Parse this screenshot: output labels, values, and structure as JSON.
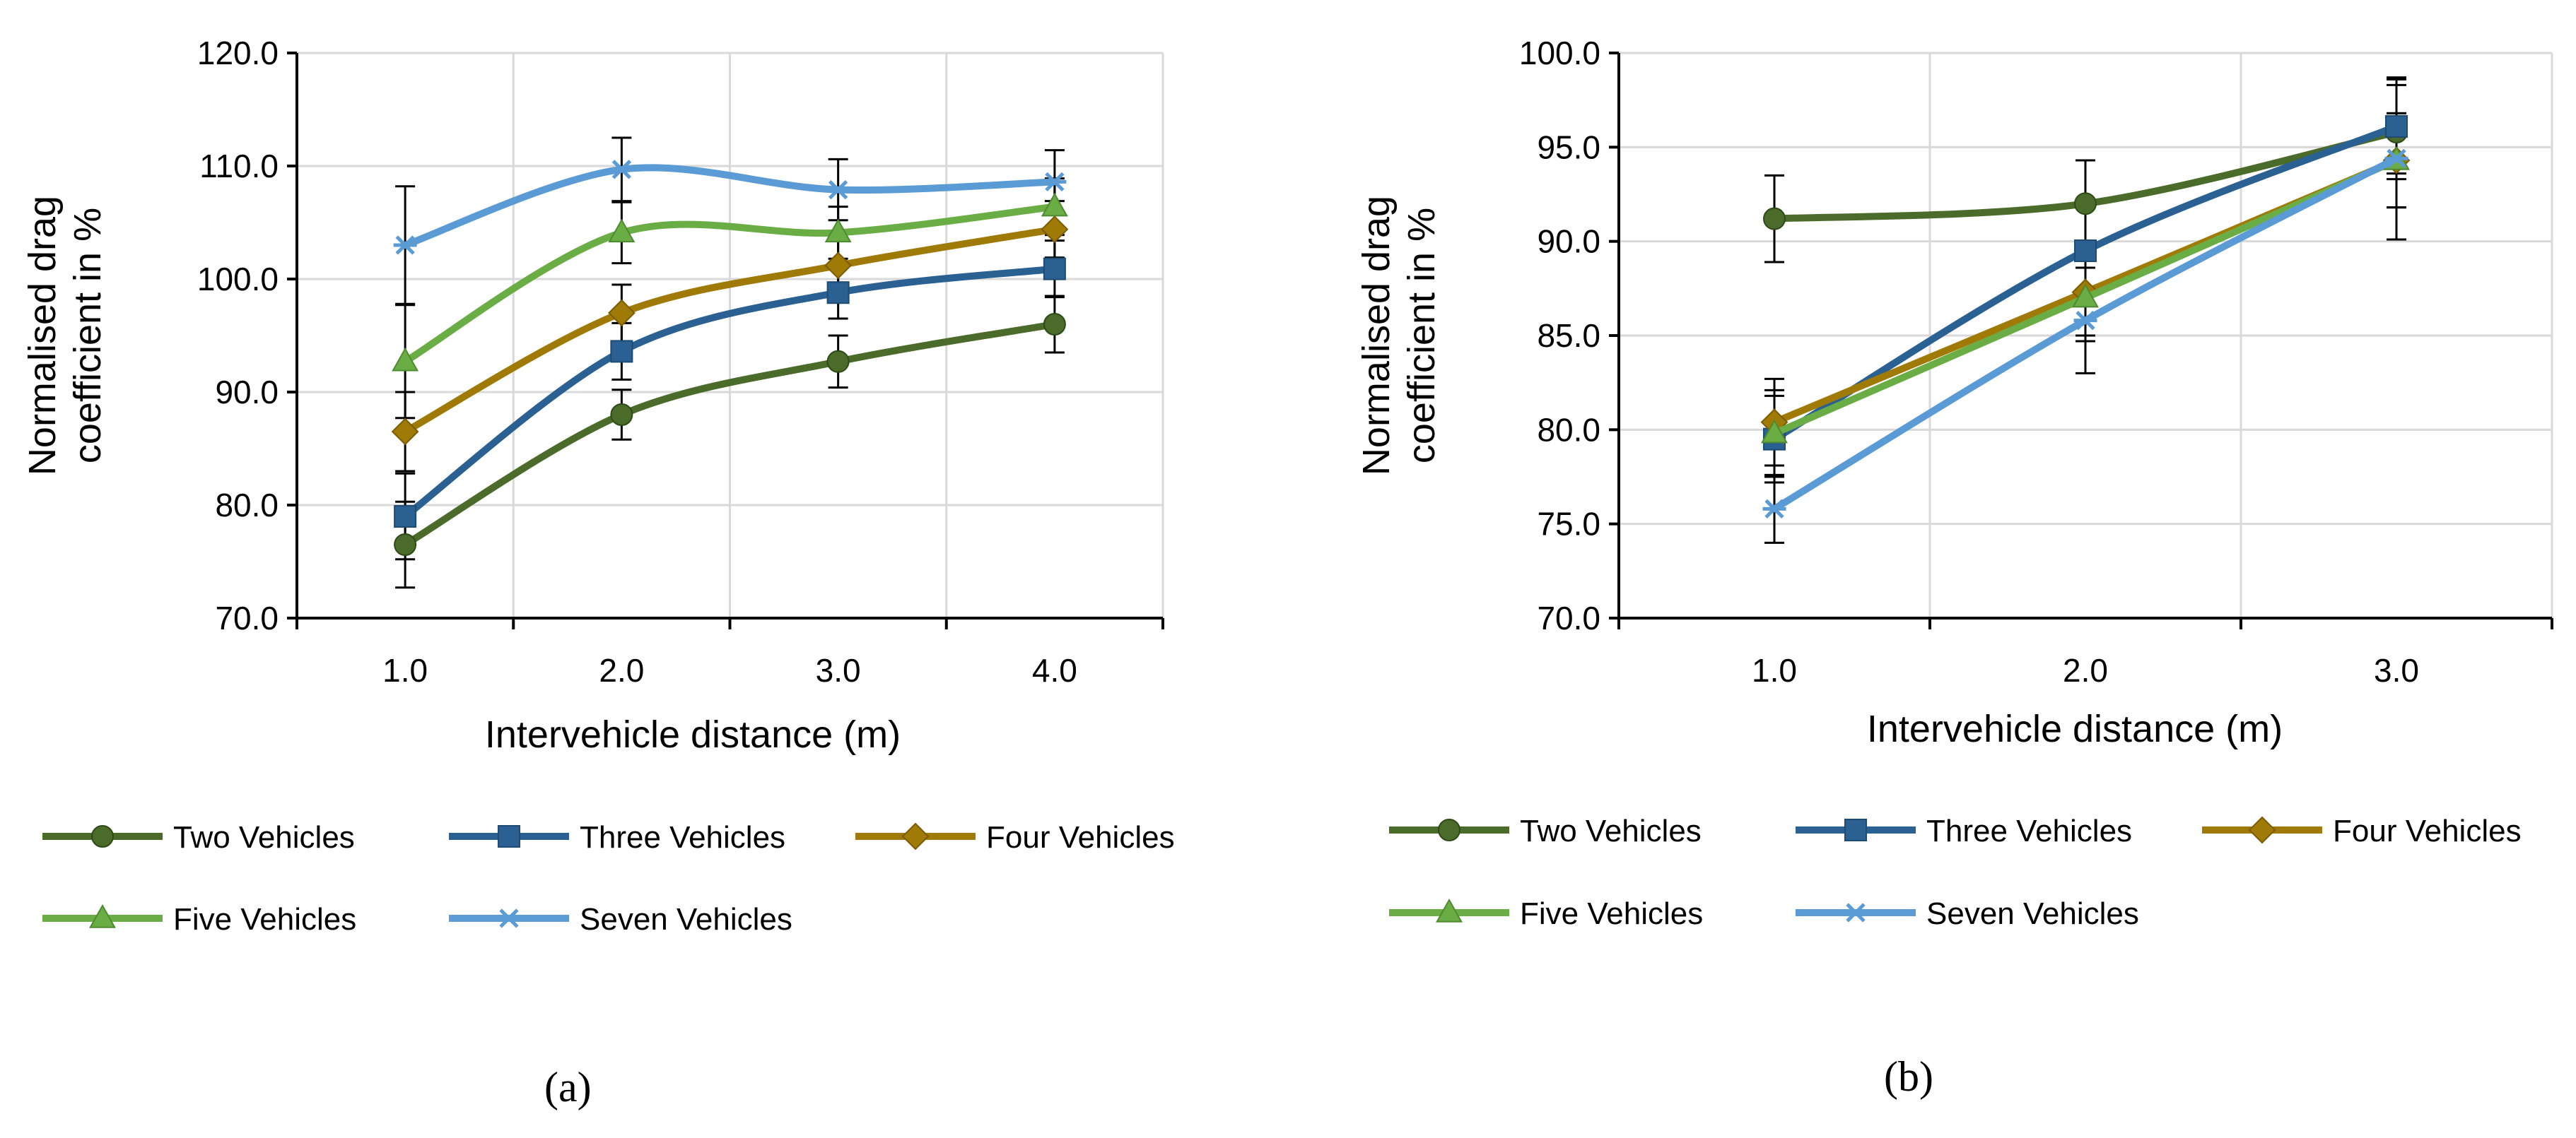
{
  "charts": [
    {
      "id": "a",
      "caption": "(a)",
      "ylabel_line1": "Normalised drag",
      "ylabel_line2": "coefficient in %",
      "xlabel": "Intervehicle distance (m)",
      "legend_layout": "2 rows below plot"
    },
    {
      "id": "b",
      "caption": "(b)",
      "ylabel_line1": "Normalised drag",
      "ylabel_line2": "coefficient in %",
      "xlabel": "Intervehicle distance  (m)",
      "legend_layout": "2 rows below plot"
    }
  ],
  "chart_data": [
    {
      "type": "line",
      "title": "",
      "xlabel": "Intervehicle distance (m)",
      "ylabel": "Normalised drag coefficient in %",
      "x": [
        "1.0",
        "2.0",
        "3.0",
        "4.0"
      ],
      "yticks": [
        "70.0",
        "80.0",
        "90.0",
        "100.0",
        "110.0",
        "120.0"
      ],
      "ylim": [
        70,
        120
      ],
      "grid": true,
      "error_bars": true,
      "legend_position": "bottom",
      "series": [
        {
          "name": "Two Vehicles",
          "color": "#4a6b2a",
          "marker": "circle",
          "values": [
            76.5,
            88.0,
            92.7,
            96.0
          ],
          "errors": [
            3.8,
            2.2,
            2.3,
            2.5
          ]
        },
        {
          "name": "Three Vehicles",
          "color": "#2a6092",
          "marker": "square",
          "values": [
            79.0,
            93.6,
            98.8,
            100.9
          ],
          "errors": [
            3.8,
            2.5,
            2.3,
            2.5
          ]
        },
        {
          "name": "Four Vehicles",
          "color": "#a07a06",
          "marker": "diamond",
          "values": [
            86.5,
            97.0,
            101.2,
            104.4
          ],
          "errors": [
            3.5,
            2.5,
            2.3,
            2.5
          ]
        },
        {
          "name": "Five Vehicles",
          "color": "#6bad45",
          "marker": "triangle",
          "values": [
            92.7,
            104.1,
            104.1,
            106.4
          ],
          "errors": [
            5.0,
            2.7,
            2.3,
            2.5
          ]
        },
        {
          "name": "Seven Vehicles",
          "color": "#5b9bd5",
          "marker": "star",
          "values": [
            103.0,
            109.7,
            107.9,
            108.6
          ],
          "errors": [
            5.2,
            2.8,
            2.7,
            2.8
          ]
        }
      ]
    },
    {
      "type": "line",
      "title": "",
      "xlabel": "Intervehicle distance  (m)",
      "ylabel": "Normalised drag coefficient in %",
      "x": [
        "1.0",
        "2.0",
        "3.0"
      ],
      "yticks": [
        "70.0",
        "75.0",
        "80.0",
        "85.0",
        "90.0",
        "95.0",
        "100.0"
      ],
      "ylim": [
        70,
        100
      ],
      "grid": true,
      "error_bars": true,
      "legend_position": "bottom",
      "series": [
        {
          "name": "Two Vehicles",
          "color": "#4a6b2a",
          "marker": "circle",
          "values": [
            91.2,
            92.0,
            95.8
          ],
          "errors": [
            2.3,
            2.3,
            2.5
          ]
        },
        {
          "name": "Three Vehicles",
          "color": "#2a6092",
          "marker": "square",
          "values": [
            79.5,
            89.5,
            96.1
          ],
          "errors": [
            2.3,
            2.3,
            2.5
          ]
        },
        {
          "name": "Four Vehicles",
          "color": "#a07a06",
          "marker": "diamond",
          "values": [
            80.4,
            87.3,
            94.3
          ],
          "errors": [
            2.3,
            2.3,
            2.5
          ]
        },
        {
          "name": "Five Vehicles",
          "color": "#6bad45",
          "marker": "triangle",
          "values": [
            79.8,
            87.0,
            94.3
          ],
          "errors": [
            2.3,
            2.3,
            2.5
          ]
        },
        {
          "name": "Seven Vehicles",
          "color": "#5b9bd5",
          "marker": "star",
          "values": [
            75.8,
            85.8,
            94.4
          ],
          "errors": [
            1.8,
            2.8,
            4.3
          ]
        }
      ]
    }
  ]
}
